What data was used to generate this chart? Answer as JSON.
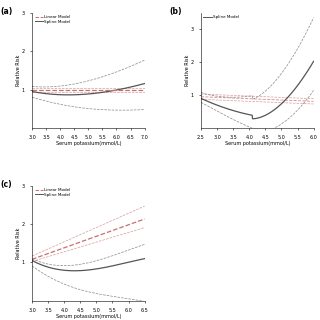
{
  "panels": [
    {
      "label": "(a)",
      "xlim": [
        3.0,
        7.0
      ],
      "xticks": [
        3.0,
        3.5,
        4.0,
        4.5,
        5.0,
        5.5,
        6.0,
        6.5,
        7.0
      ],
      "ylim": [
        0.0,
        3.0
      ],
      "yticks": [
        1.0,
        2.0,
        3.0
      ],
      "xlabel": "Serum potassium(mmol/L)",
      "ylabel": "Relative Risk",
      "legend_items": [
        "Linear Model",
        "Spline Model"
      ]
    },
    {
      "label": "(b)",
      "xlim": [
        2.5,
        6.0
      ],
      "xticks": [
        2.5,
        3.0,
        3.5,
        4.0,
        4.5,
        5.0,
        5.5,
        6.0
      ],
      "ylim": [
        0.0,
        3.5
      ],
      "yticks": [
        1.0,
        2.0,
        3.0
      ],
      "xlabel": "Serum potassium(mmol/L)",
      "ylabel": "Relative Risk",
      "legend_items": [
        "Spline Model"
      ]
    },
    {
      "label": "(c)",
      "xlim": [
        3.0,
        6.5
      ],
      "xticks": [
        3.0,
        3.5,
        4.0,
        4.5,
        5.0,
        5.5,
        6.0,
        6.5
      ],
      "ylim": [
        0.0,
        3.0
      ],
      "yticks": [
        1.0,
        2.0,
        3.0
      ],
      "xlabel": "Serum potassium(mmol/L)",
      "ylabel": "Relative Risk",
      "legend_items": [
        "Linear Model",
        "Spline Model"
      ]
    }
  ],
  "linear_color": "#c87070",
  "spline_color": "#555555",
  "background_color": "#ffffff"
}
